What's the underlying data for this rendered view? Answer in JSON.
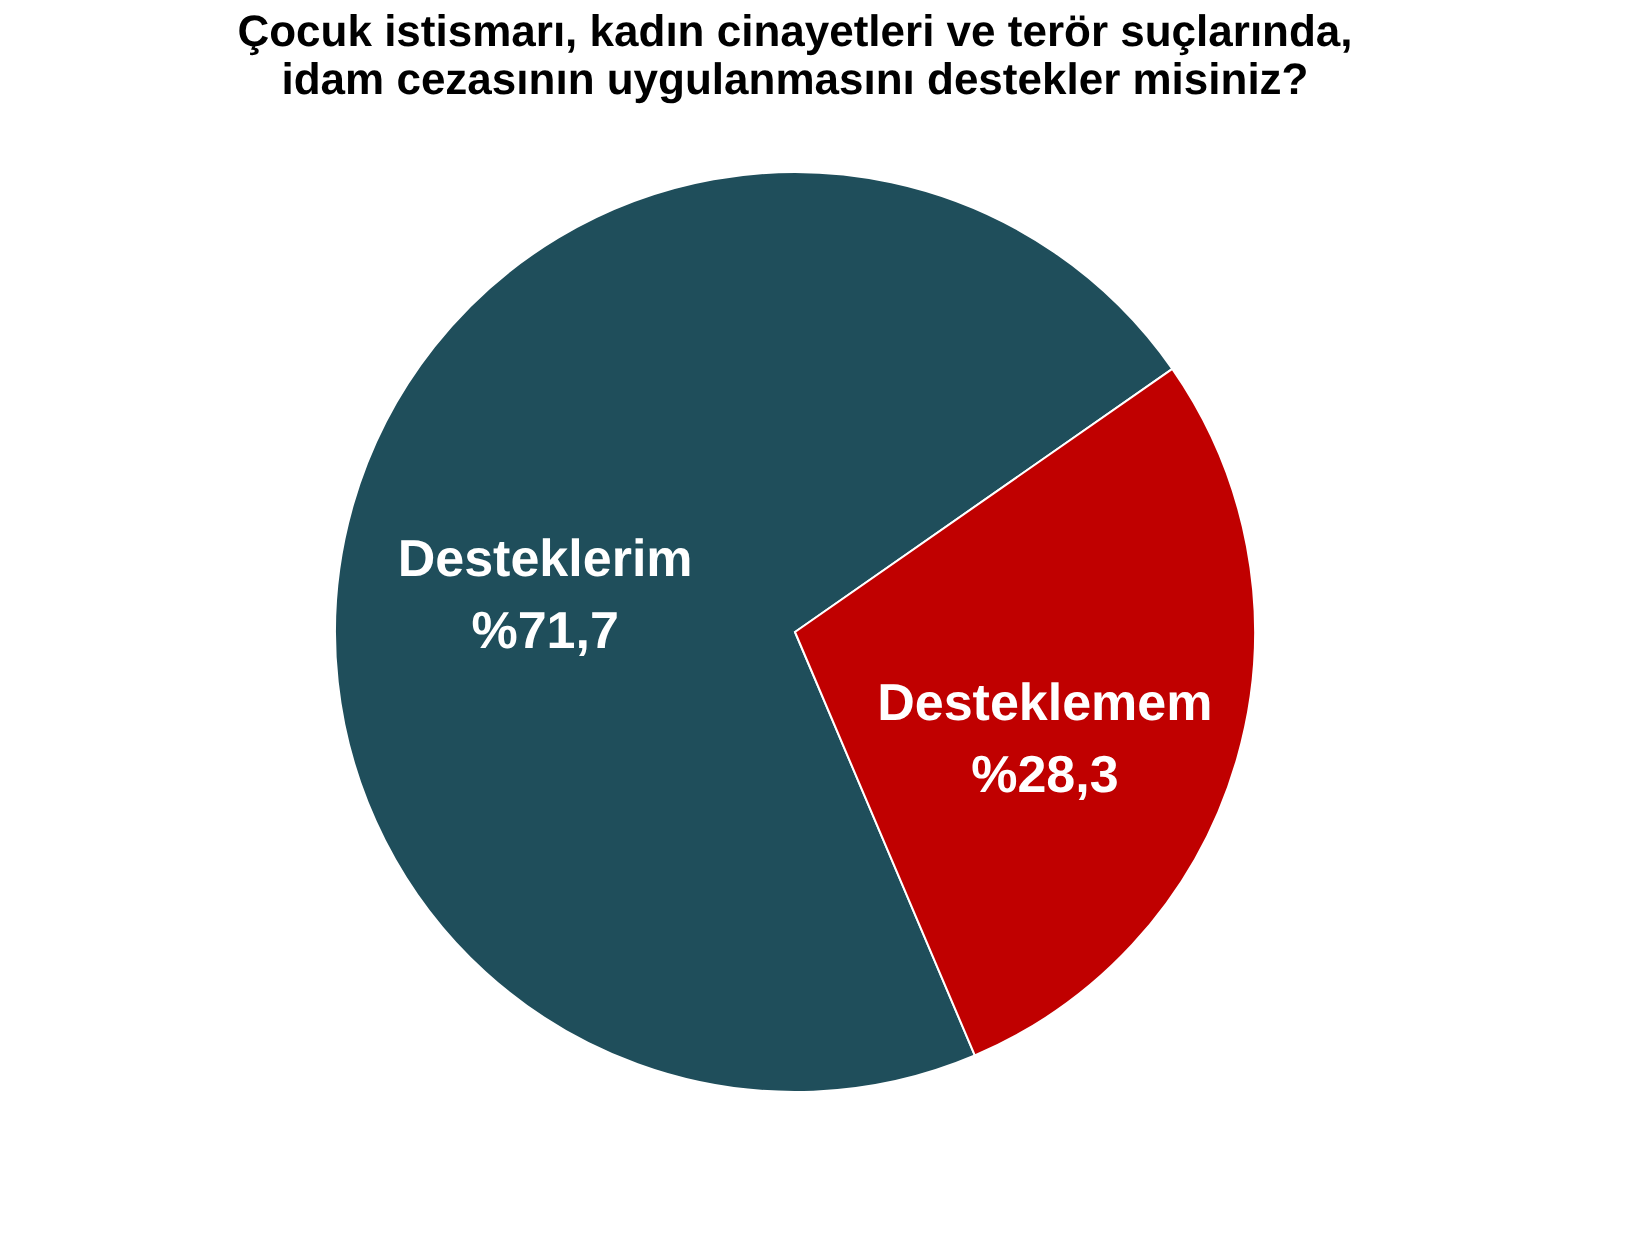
{
  "chart_data": {
    "type": "pie",
    "title": "Çocuk istismarı, kadın cinayetleri ve terör suçlarında,\nidam cezasının uygulanmasını destekler misiniz?",
    "categories": [
      "Desteklerim",
      "Desteklemem"
    ],
    "values": [
      71.7,
      28.3
    ],
    "colors": [
      "#1f4e5b",
      "#c00000"
    ],
    "value_labels": [
      "%71,7",
      "%28,3"
    ],
    "legend": false
  }
}
